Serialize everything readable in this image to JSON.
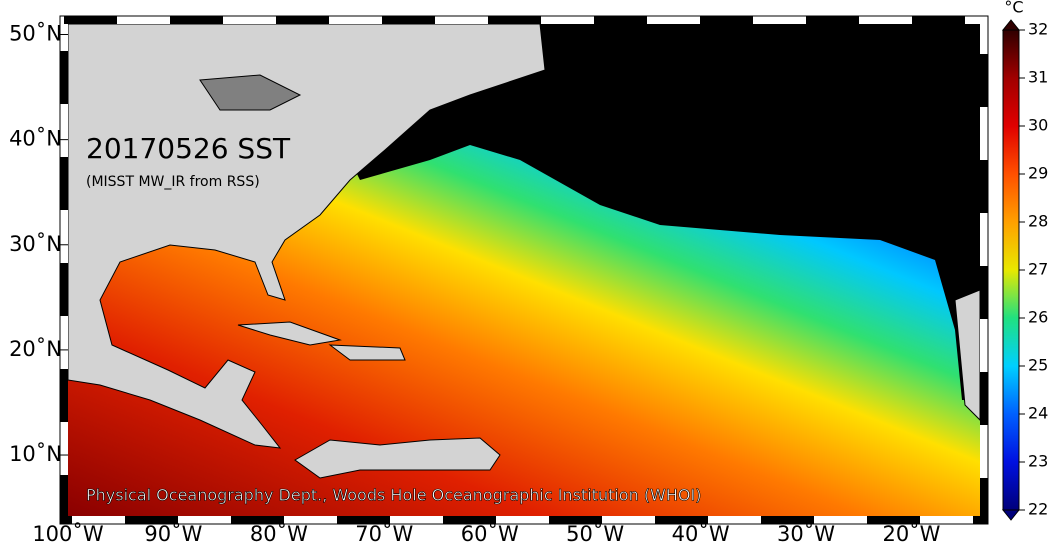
{
  "map": {
    "title": "20170526 SST",
    "subtitle": "(MISST MW_IR from RSS)",
    "credit": "Physical Oceanography Dept., Woods Hole Oceanographic Institution (WHOI)",
    "xlim": [
      -100,
      -13.5
    ],
    "ylim": [
      4.2,
      51
    ],
    "xticks": [
      {
        "value": -100,
        "label": "100˚W"
      },
      {
        "value": -90,
        "label": "90˚W"
      },
      {
        "value": -80,
        "label": "80˚W"
      },
      {
        "value": -70,
        "label": "70˚W"
      },
      {
        "value": -60,
        "label": "60˚W"
      },
      {
        "value": -50,
        "label": "50˚W"
      },
      {
        "value": -40,
        "label": "40˚W"
      },
      {
        "value": -30,
        "label": "30˚W"
      },
      {
        "value": -20,
        "label": "20˚W"
      }
    ],
    "yticks": [
      {
        "value": 10,
        "label": "10˚N"
      },
      {
        "value": 20,
        "label": "20˚N"
      },
      {
        "value": 30,
        "label": "30˚N"
      },
      {
        "value": 40,
        "label": "40˚N"
      },
      {
        "value": 50,
        "label": "50˚N"
      }
    ],
    "colorbar": {
      "unit": "°C",
      "lim": [
        22,
        32
      ],
      "ticks": [
        22,
        23,
        24,
        25,
        26,
        27,
        28,
        29,
        30,
        31,
        32
      ]
    }
  }
}
